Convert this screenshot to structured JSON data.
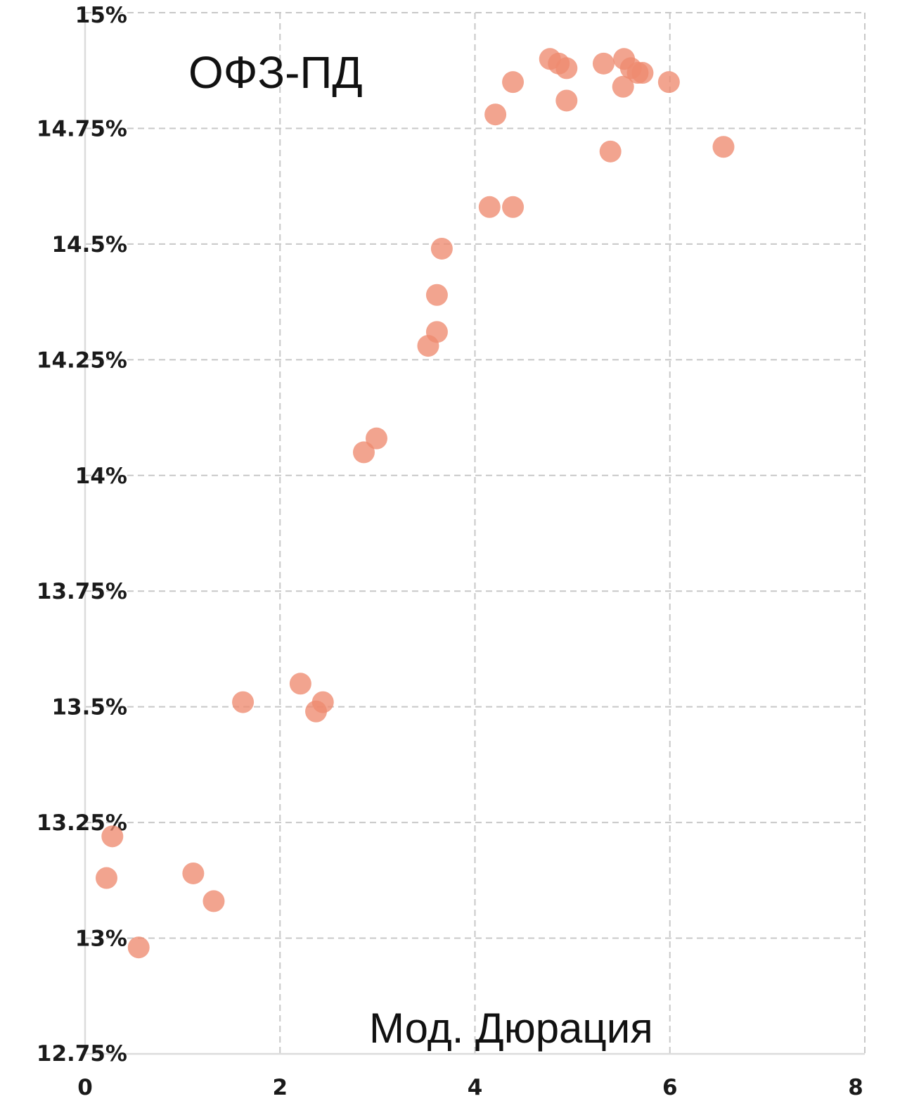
{
  "chart_data": {
    "type": "scatter",
    "title": "ОФЗ-ПД",
    "xlabel": "Мод. Дюрация",
    "ylabel": "",
    "xlim": [
      0,
      8
    ],
    "ylim": [
      12.75,
      15
    ],
    "x_ticks": [
      0,
      2,
      4,
      6,
      8
    ],
    "x_tick_labels": [
      "0",
      "2",
      "4",
      "6",
      "8"
    ],
    "y_ticks": [
      12.75,
      13,
      13.25,
      13.5,
      13.75,
      14,
      14.25,
      14.5,
      14.75,
      15
    ],
    "y_tick_labels": [
      "12.75%",
      "13%",
      "13.25%",
      "13.5%",
      "13.75%",
      "14%",
      "14.25%",
      "14.5%",
      "14.75%",
      "15%"
    ],
    "grid": true,
    "legend": "none",
    "point_color": "#ee8a70",
    "series": [
      {
        "points": [
          {
            "x": 0.22,
            "y": 13.13
          },
          {
            "x": 0.28,
            "y": 13.22
          },
          {
            "x": 0.55,
            "y": 12.98
          },
          {
            "x": 1.11,
            "y": 13.14
          },
          {
            "x": 1.32,
            "y": 13.08
          },
          {
            "x": 1.62,
            "y": 13.51
          },
          {
            "x": 2.21,
            "y": 13.55
          },
          {
            "x": 2.37,
            "y": 13.49
          },
          {
            "x": 2.44,
            "y": 13.51
          },
          {
            "x": 2.86,
            "y": 14.05
          },
          {
            "x": 2.99,
            "y": 14.08
          },
          {
            "x": 3.52,
            "y": 14.28
          },
          {
            "x": 3.61,
            "y": 14.31
          },
          {
            "x": 3.61,
            "y": 14.39
          },
          {
            "x": 3.66,
            "y": 14.49
          },
          {
            "x": 4.15,
            "y": 14.58
          },
          {
            "x": 4.39,
            "y": 14.58
          },
          {
            "x": 4.21,
            "y": 14.78
          },
          {
            "x": 4.39,
            "y": 14.85
          },
          {
            "x": 4.77,
            "y": 14.9
          },
          {
            "x": 4.86,
            "y": 14.89
          },
          {
            "x": 4.94,
            "y": 14.88
          },
          {
            "x": 4.94,
            "y": 14.81
          },
          {
            "x": 5.32,
            "y": 14.89
          },
          {
            "x": 5.39,
            "y": 14.7
          },
          {
            "x": 5.53,
            "y": 14.9
          },
          {
            "x": 5.52,
            "y": 14.84
          },
          {
            "x": 5.6,
            "y": 14.88
          },
          {
            "x": 5.67,
            "y": 14.87
          },
          {
            "x": 5.72,
            "y": 14.87
          },
          {
            "x": 5.99,
            "y": 14.85
          },
          {
            "x": 6.55,
            "y": 14.71
          }
        ]
      }
    ]
  }
}
